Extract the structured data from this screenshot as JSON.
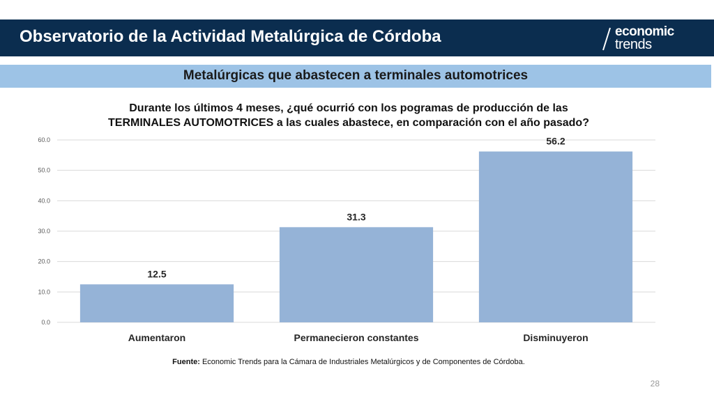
{
  "header": {
    "title": "Observatorio de la Actividad Metalúrgica de Córdoba",
    "logo_line1": "economic",
    "logo_line2": "trends"
  },
  "subheader": {
    "title": "Metalúrgicas que abastecen a terminales automotrices"
  },
  "chart_data": {
    "type": "bar",
    "title_line1": "Durante los últimos 4 meses, ¿qué ocurrió con los pogramas de producción de las",
    "title_line2": "TERMINALES AUTOMOTRICES a las cuales abastece, en comparación con el año pasado?",
    "categories": [
      "Aumentaron",
      "Permanecieron constantes",
      "Disminuyeron"
    ],
    "values": [
      12.5,
      31.3,
      56.2
    ],
    "value_labels": [
      "12.5",
      "31.3",
      "56.2"
    ],
    "ylim": [
      0,
      60
    ],
    "yticks": [
      "0.0",
      "10.0",
      "20.0",
      "30.0",
      "40.0",
      "50.0",
      "60.0"
    ],
    "ytick_values": [
      0,
      10,
      20,
      30,
      40,
      50,
      60
    ],
    "grid": true,
    "bar_color": "#95b3d7",
    "grid_color": "#d9d9d9"
  },
  "source": {
    "label": "Fuente:",
    "text": " Economic Trends para la Cámara de Industriales Metalúrgicos y de Componentes de Córdoba."
  },
  "page_number": "28",
  "colors": {
    "header_bg": "#0b2d4f",
    "subheader_bg": "#9dc3e6"
  }
}
